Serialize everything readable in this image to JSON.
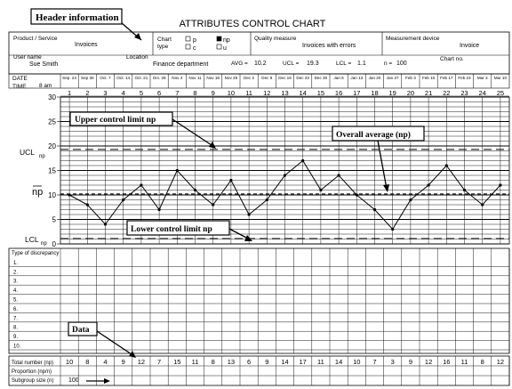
{
  "page_title": "ATTRIBUTES CONTROL CHART",
  "header": {
    "product_service_label": "Product / Service",
    "product_service_value": "Invoices",
    "chart_type_label": "Chart type",
    "chart_type_options": [
      "p",
      "np",
      "c",
      "u"
    ],
    "chart_type_selected": "np",
    "quality_measure_label": "Quality measure",
    "quality_measure_value": "Invoices with errors",
    "measurement_device_label": "Measurement device",
    "measurement_device_value": "Invoice",
    "user_name_label": "User name",
    "user_name_value": "Sue Smith",
    "location_label": "Location",
    "location_value": "Finance department",
    "avg_label": "AVG =",
    "avg_value": "10.2",
    "ucl_label": "UCL =",
    "ucl_value": "19.3",
    "lcl_label": "LCL =",
    "lcl_value": "1.1",
    "n_label": "n =",
    "n_value": "100",
    "chart_no_label": "Chart no."
  },
  "row_labels": {
    "date": "DATE",
    "time": "TIME",
    "time_value": "8 am"
  },
  "dates": [
    "Sep. 24",
    "Sep 30",
    "Oct. 7",
    "Oct. 14",
    "Oct. 21",
    "Oct. 28",
    "Nov 4",
    "Nov 11",
    "Nov 18",
    "Nov 25",
    "Dec 2",
    "Dec 9",
    "Dec 16",
    "Dec 23",
    "Dec 30",
    "Jan 6",
    "Jan 13",
    "Jan 20",
    "Jan 27",
    "Feb 3",
    "Feb 10",
    "Feb 17",
    "Feb 24",
    "Mar 3",
    "Mar 10"
  ],
  "discrepancy": {
    "title": "Type of discrepancy",
    "rows": [
      "1.",
      "2.",
      "3.",
      "4.",
      "5.",
      "6.",
      "7.",
      "8.",
      "9.",
      "10."
    ]
  },
  "bottom_rows": {
    "total_number_label": "Total number (np)",
    "proportion_label": "Proportion (np/n)",
    "subgroup_label": "Subgroup size (n)",
    "subgroup_value": "100"
  },
  "annotations": {
    "header_info": "Header information",
    "ucl": "Upper control limit np",
    "overall_avg": "Overall average (np)",
    "lcl": "Lower control limit np",
    "data": "Data"
  },
  "chart_data": {
    "type": "line",
    "x": [
      1,
      2,
      3,
      4,
      5,
      6,
      7,
      8,
      9,
      10,
      11,
      12,
      13,
      14,
      15,
      16,
      17,
      18,
      19,
      20,
      21,
      22,
      23,
      24,
      25
    ],
    "values": [
      10,
      8,
      4,
      9,
      12,
      7,
      15,
      11,
      8,
      13,
      6,
      9,
      14,
      17,
      11,
      14,
      10,
      7,
      3,
      9,
      12,
      16,
      11,
      8,
      12
    ],
    "ucl": 19.3,
    "center": 10.2,
    "lcl": 1.1,
    "ylim": [
      0,
      30
    ],
    "yticks": [
      0,
      5,
      10,
      15,
      20,
      25,
      30
    ],
    "ytick_labels": [
      "0",
      "5",
      "10",
      "15",
      "20",
      "25",
      "30"
    ],
    "ylabel": "np",
    "ucl_label": "UCL",
    "ucl_sub": "np",
    "lcl_label": "LCL",
    "lcl_sub": "np",
    "grid": true
  }
}
